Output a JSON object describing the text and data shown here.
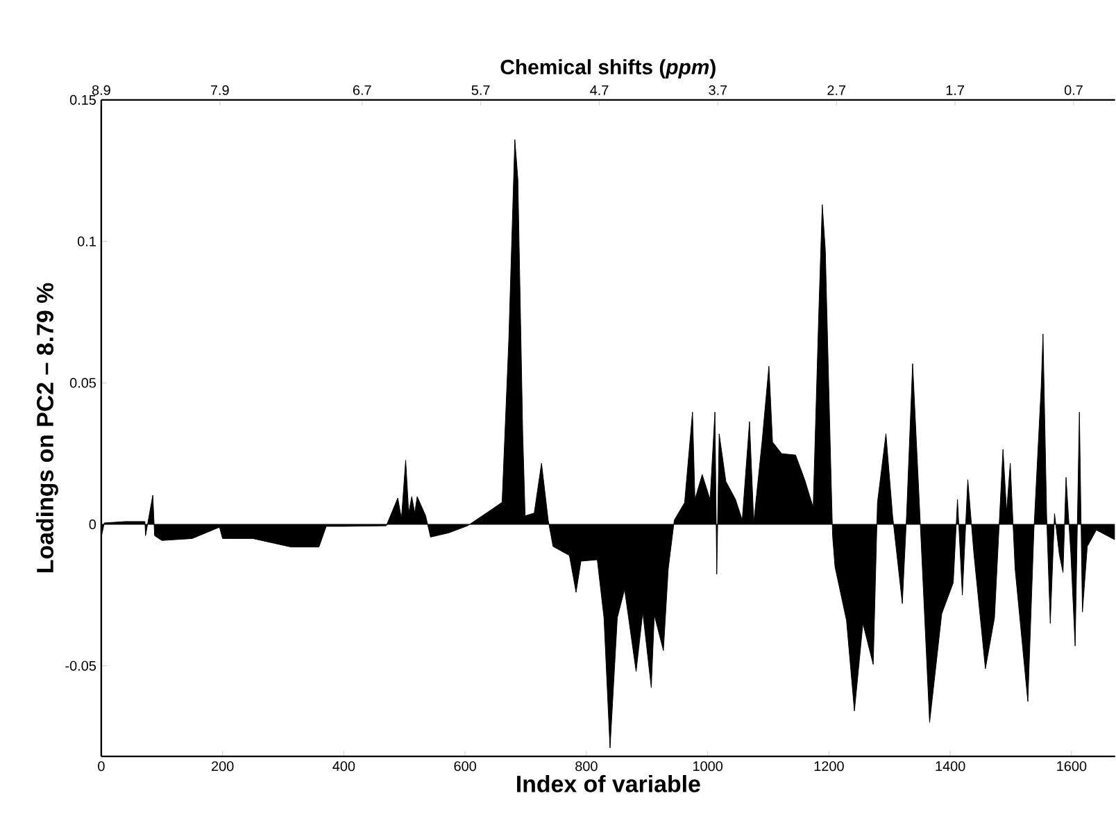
{
  "chart_data": {
    "type": "area",
    "x2label": "Chemical shifts (*ppm*)",
    "xlabel": "Index of variable",
    "ylabel": "Loadings on PC2 – 8.79 %",
    "xlim": [
      0,
      1672
    ],
    "ylim": [
      -0.082,
      0.15
    ],
    "xticks": [
      0,
      200,
      400,
      600,
      800,
      1000,
      1200,
      1400,
      1600
    ],
    "yticks": [
      -0.05,
      0,
      0.05,
      0.1,
      0.15
    ],
    "x2lim": [
      8.9,
      0.35
    ],
    "x2ticks": [
      8.9,
      7.9,
      6.7,
      5.7,
      4.7,
      3.7,
      2.7,
      1.7,
      0.7
    ],
    "x": [
      0,
      5,
      40,
      72,
      73,
      85,
      88,
      100,
      150,
      195,
      200,
      250,
      313,
      359,
      371,
      400,
      470,
      489,
      495,
      502,
      507,
      512,
      517,
      521,
      535,
      543,
      573,
      604,
      642,
      661,
      672,
      682,
      687,
      695,
      699,
      714,
      726,
      737,
      745,
      772,
      783,
      791,
      818,
      829,
      839,
      851,
      863,
      882,
      893,
      907,
      912,
      927,
      935,
      945,
      962,
      975,
      979,
      991,
      1004,
      1012,
      1015,
      1019,
      1030,
      1046,
      1057,
      1069,
      1076,
      1090,
      1101,
      1107,
      1122,
      1145,
      1160,
      1174,
      1183,
      1189,
      1194,
      1202,
      1206,
      1210,
      1229,
      1242,
      1256,
      1273,
      1280,
      1294,
      1305,
      1321,
      1328,
      1338,
      1349,
      1366,
      1386,
      1405,
      1412,
      1420,
      1429,
      1439,
      1458,
      1473,
      1487,
      1493,
      1499,
      1507,
      1528,
      1538,
      1550,
      1553,
      1559,
      1565,
      1572,
      1580,
      1586,
      1591,
      1599,
      1606,
      1613,
      1618,
      1626,
      1641,
      1671
    ],
    "series": [
      {
        "color": "#000000",
        "values": [
          -0.0045,
          0.0005,
          0.001,
          0.001,
          -0.004,
          0.0103,
          -0.004,
          -0.0057,
          -0.005,
          -0.001,
          -0.005,
          -0.005,
          -0.008,
          -0.008,
          -0.0007,
          -0.0007,
          -0.0005,
          0.0093,
          0.002,
          0.0227,
          0.004,
          0.0098,
          0.004,
          0.0098,
          0.003,
          -0.0045,
          -0.003,
          -0.0005,
          0.005,
          0.0078,
          0.0649,
          0.136,
          0.122,
          0.032,
          0.003,
          0.004,
          0.0216,
          0.0015,
          -0.0078,
          -0.011,
          -0.024,
          -0.013,
          -0.0125,
          -0.033,
          -0.079,
          -0.033,
          -0.023,
          -0.052,
          -0.031,
          -0.0577,
          -0.032,
          -0.0446,
          -0.0157,
          0.0015,
          0.0077,
          0.0397,
          0.0088,
          0.0176,
          0.0088,
          0.0397,
          -0.0176,
          0.032,
          0.0152,
          0.0088,
          0.0015,
          0.0363,
          0.0007,
          0.0299,
          0.0559,
          0.0291,
          0.025,
          0.0245,
          0.0158,
          0.006,
          0.073,
          0.113,
          0.097,
          0.029,
          -0.004,
          -0.015,
          -0.034,
          -0.066,
          -0.035,
          -0.0495,
          0.0077,
          0.032,
          0.003,
          -0.028,
          0.003,
          0.0568,
          0.0077,
          -0.07,
          -0.0316,
          -0.0206,
          0.0088,
          -0.025,
          0.0158,
          -0.0103,
          -0.051,
          -0.033,
          0.0265,
          0.0044,
          0.0216,
          -0.0157,
          -0.0626,
          -0.002,
          0.0485,
          0.0673,
          0.003,
          -0.035,
          0.0038,
          -0.0107,
          -0.017,
          0.0166,
          -0.0107,
          -0.043,
          0.0397,
          -0.031,
          -0.0078,
          -0.002,
          -0.0054
        ]
      }
    ]
  }
}
